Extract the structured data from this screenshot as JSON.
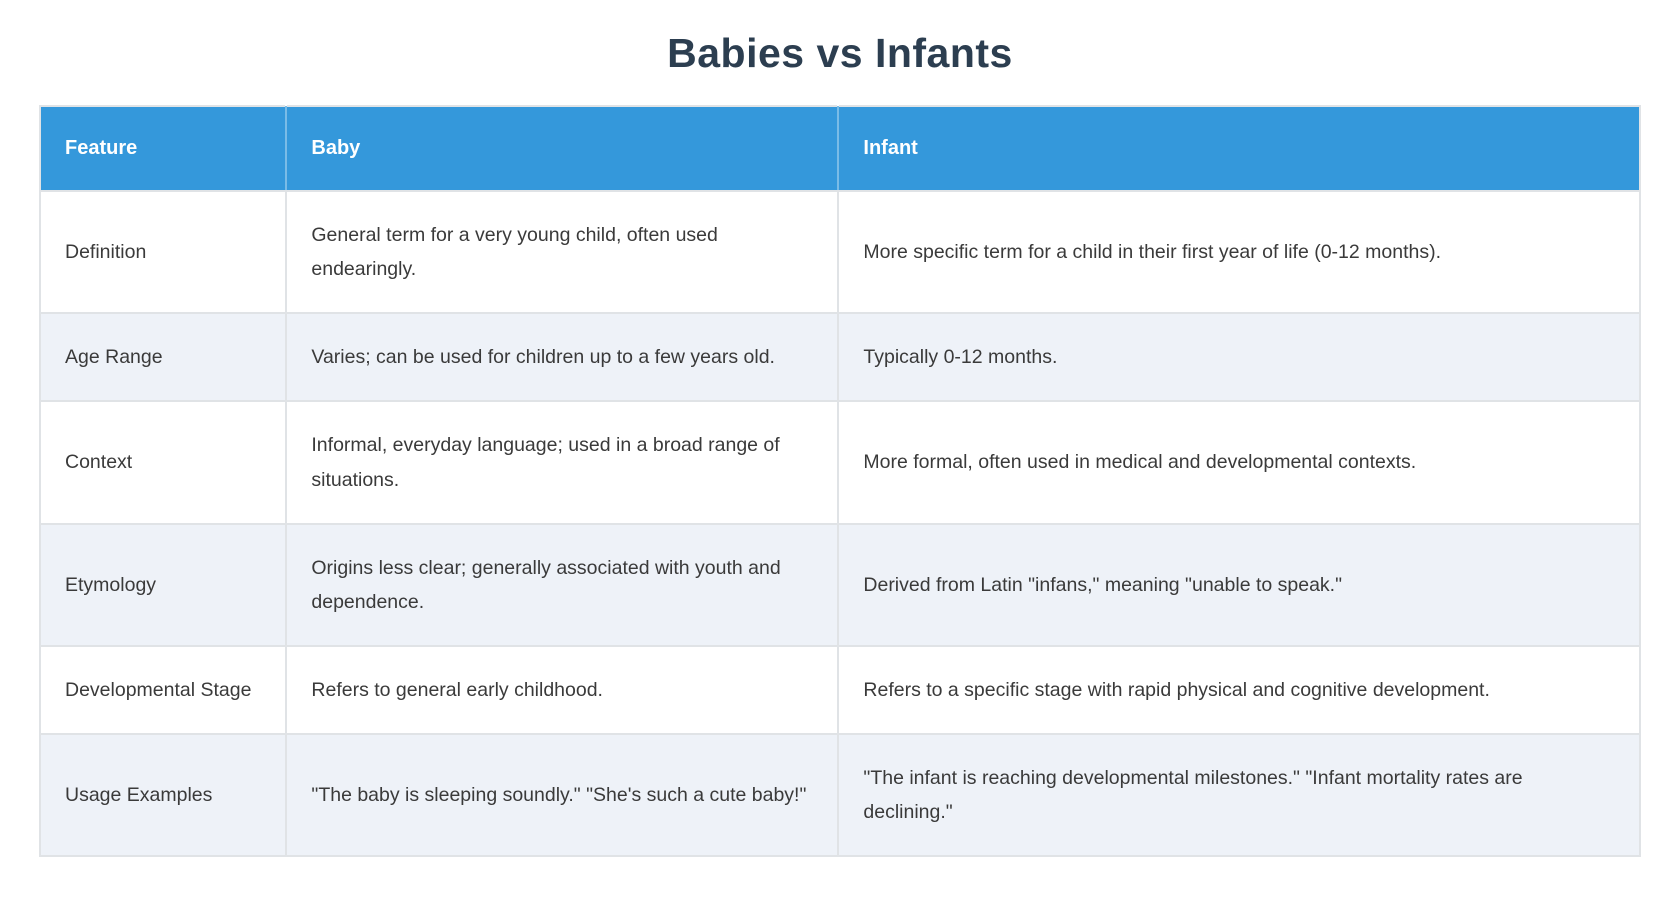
{
  "title": "Babies vs Infants",
  "colors": {
    "header_bg": "#3498db",
    "header_text": "#ffffff",
    "title_text": "#2c3e50",
    "row_alt_bg": "#eef2f8",
    "row_bg": "#ffffff",
    "border": "#e0e3e6",
    "body_text": "#3a3a3a"
  },
  "table": {
    "columns": [
      {
        "label": "Feature"
      },
      {
        "label": "Baby"
      },
      {
        "label": "Infant"
      }
    ],
    "rows": [
      {
        "feature": "Definition",
        "baby": "General term for a very young child, often used endearingly.",
        "infant": "More specific term for a child in their first year of life (0-12 months)."
      },
      {
        "feature": "Age Range",
        "baby": "Varies; can be used for children up to a few years old.",
        "infant": "Typically 0-12 months."
      },
      {
        "feature": "Context",
        "baby": "Informal, everyday language; used in a broad range of situations.",
        "infant": "More formal, often used in medical and developmental contexts."
      },
      {
        "feature": "Etymology",
        "baby": "Origins less clear; generally associated with youth and dependence.",
        "infant": "Derived from Latin \"infans,\" meaning \"unable to speak.\""
      },
      {
        "feature": "Developmental Stage",
        "baby": "Refers to general early childhood.",
        "infant": "Refers to a specific stage with rapid physical and cognitive development."
      },
      {
        "feature": "Usage Examples",
        "baby": "\"The baby is sleeping soundly.\" \"She's such a cute baby!\"",
        "infant": "\"The infant is reaching developmental milestones.\" \"Infant mortality rates are declining.\""
      }
    ]
  }
}
